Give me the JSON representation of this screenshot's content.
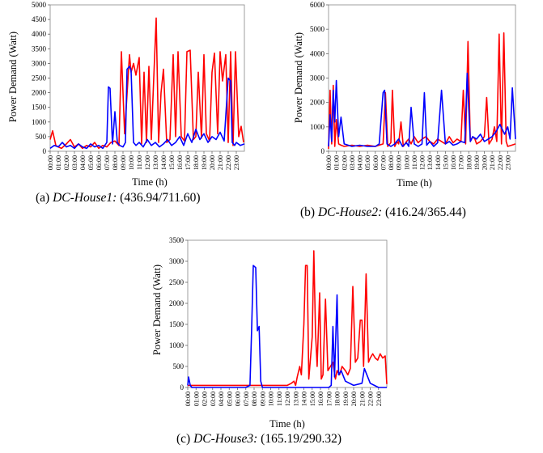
{
  "chart_data": [
    {
      "type": "line",
      "caption": {
        "label": "(a)",
        "name": "DC-House1:",
        "values": "(436.94/711.60)"
      },
      "xlabel": "Time (h)",
      "ylabel": "Power Demand (Watt)",
      "ylim": [
        0,
        5000
      ],
      "yticks": [
        0,
        500,
        1000,
        1500,
        2000,
        2500,
        3000,
        3500,
        4000,
        4500,
        5000
      ],
      "xticks": [
        "00:00",
        "01:00",
        "02:00",
        "03:00",
        "04:00",
        "05:00",
        "06:00",
        "07:00",
        "08:00",
        "09:00",
        "10:00",
        "11:00",
        "12:00",
        "13:00",
        "14:00",
        "15:00",
        "16:00",
        "17:00",
        "18:00",
        "19:00",
        "20:00",
        "21:00",
        "22:00",
        "23:00"
      ],
      "grid": false,
      "series": [
        {
          "color": "#ff0000",
          "x": [
            0,
            0.3,
            0.7,
            1,
            1.4,
            2,
            2.5,
            3,
            3.5,
            4,
            4.5,
            5,
            5.5,
            6,
            6.5,
            7,
            7.5,
            8,
            8.5,
            8.8,
            9.2,
            9.8,
            10,
            10.3,
            10.6,
            11,
            11.3,
            11.6,
            11.9,
            12.2,
            12.5,
            12.8,
            13.1,
            13.4,
            13.7,
            14,
            14.4,
            14.8,
            15.2,
            15.5,
            15.8,
            16.2,
            16.6,
            16.9,
            17.3,
            17.7,
            18,
            18.3,
            18.7,
            19,
            19.3,
            19.7,
            20,
            20.3,
            20.7,
            21,
            21.3,
            21.7,
            22,
            22.3,
            22.6,
            22.9,
            23.3,
            23.6,
            23.9
          ],
          "y": [
            400,
            700,
            200,
            150,
            100,
            250,
            400,
            150,
            250,
            100,
            200,
            150,
            300,
            100,
            200,
            150,
            300,
            350,
            200,
            3400,
            600,
            3300,
            2700,
            3000,
            2600,
            3200,
            250,
            2700,
            300,
            2900,
            400,
            2500,
            4550,
            300,
            2000,
            2800,
            300,
            400,
            3300,
            500,
            3400,
            500,
            350,
            3400,
            3450,
            400,
            500,
            2700,
            450,
            3300,
            600,
            350,
            2700,
            3350,
            600,
            3400,
            2400,
            3300,
            300,
            3400,
            200,
            3400,
            500,
            850,
            300
          ]
        },
        {
          "color": "#0000ff",
          "x": [
            0,
            0.5,
            1,
            1.5,
            2,
            2.5,
            3,
            3.5,
            4,
            4.5,
            5,
            5.5,
            6,
            6.5,
            7,
            7.2,
            7.4,
            7.7,
            8,
            8.3,
            8.6,
            9,
            9.3,
            9.5,
            9.8,
            10,
            10.3,
            10.6,
            11,
            11.5,
            12,
            12.5,
            13,
            13.5,
            14,
            14.5,
            15,
            15.5,
            16,
            16.5,
            17,
            17.5,
            18,
            18.5,
            19,
            19.5,
            20,
            20.5,
            21,
            21.5,
            22,
            22.3,
            22.5,
            22.8,
            23,
            23.5,
            24
          ],
          "y": [
            100,
            200,
            150,
            300,
            150,
            200,
            100,
            250,
            150,
            100,
            250,
            150,
            200,
            100,
            300,
            2200,
            2150,
            250,
            1350,
            300,
            200,
            150,
            300,
            2800,
            2900,
            2750,
            300,
            200,
            300,
            150,
            400,
            200,
            300,
            150,
            250,
            400,
            200,
            300,
            500,
            200,
            600,
            300,
            750,
            400,
            600,
            300,
            500,
            400,
            650,
            350,
            2500,
            2400,
            300,
            200,
            300,
            200,
            250
          ]
        }
      ]
    },
    {
      "type": "line",
      "caption": {
        "label": "(b)",
        "name": "DC-House2:",
        "values": "(416.24/365.44)"
      },
      "xlabel": "Time (h)",
      "ylabel": "Power Demand (Watt)",
      "ylim": [
        0,
        6000
      ],
      "yticks": [
        0,
        1000,
        2000,
        3000,
        4000,
        5000,
        6000
      ],
      "xticks": [
        "00:00",
        "01:00",
        "02:00",
        "03:00",
        "04:00",
        "05:00",
        "06:00",
        "07:00",
        "08:00",
        "09:00",
        "10:00",
        "11:00",
        "12:00",
        "13:00",
        "14:00",
        "15:00",
        "16:00",
        "17:00",
        "18:00",
        "19:00",
        "20:00",
        "21:00",
        "22:00",
        "23:00"
      ],
      "grid": false,
      "series": [
        {
          "color": "#ff0000",
          "x": [
            0,
            0.2,
            0.4,
            0.6,
            0.8,
            1,
            1.3,
            1.6,
            2,
            3,
            4,
            5,
            6,
            7,
            7.3,
            7.6,
            8,
            8.2,
            8.5,
            8.8,
            9,
            9.3,
            9.6,
            10,
            10.3,
            10.6,
            11,
            11.5,
            12,
            12.5,
            13,
            13.5,
            14,
            14.5,
            15,
            15.5,
            16,
            16.5,
            17,
            17.3,
            17.6,
            17.9,
            18.2,
            18.5,
            18.8,
            19,
            19.5,
            20,
            20.3,
            20.6,
            21,
            21.3,
            21.6,
            21.9,
            22.2,
            22.5,
            22.8,
            23,
            23.5,
            24
          ],
          "y": [
            100,
            2500,
            300,
            2700,
            200,
            1300,
            300,
            250,
            200,
            250,
            200,
            250,
            200,
            300,
            2400,
            200,
            350,
            2500,
            200,
            400,
            300,
            1200,
            200,
            400,
            500,
            300,
            600,
            350,
            500,
            600,
            400,
            300,
            500,
            400,
            300,
            600,
            350,
            500,
            400,
            2500,
            300,
            4500,
            400,
            600,
            500,
            300,
            400,
            600,
            2200,
            300,
            500,
            1000,
            400,
            4800,
            300,
            4850,
            400,
            200,
            250,
            300
          ]
        },
        {
          "color": "#0000ff",
          "x": [
            0,
            0.2,
            0.4,
            0.6,
            0.8,
            1,
            1.3,
            1.6,
            2,
            3,
            4,
            5,
            6,
            6.5,
            7,
            7.2,
            7.5,
            8,
            8.5,
            9,
            9.5,
            10,
            10.3,
            10.6,
            11,
            11.5,
            12,
            12.3,
            12.6,
            13,
            13.5,
            14,
            14.5,
            15,
            15.5,
            16,
            16.5,
            17,
            17.5,
            17.8,
            18.2,
            18.5,
            19,
            19.5,
            20,
            20.5,
            21,
            21.5,
            22,
            22.3,
            22.6,
            23,
            23.3,
            23.6,
            24
          ],
          "y": [
            200,
            1500,
            400,
            2500,
            1200,
            2900,
            600,
            1400,
            300,
            200,
            250,
            200,
            200,
            300,
            2400,
            2500,
            300,
            200,
            300,
            500,
            200,
            350,
            200,
            1800,
            300,
            200,
            300,
            2400,
            250,
            400,
            200,
            350,
            2500,
            300,
            400,
            250,
            300,
            400,
            350,
            3200,
            400,
            600,
            500,
            700,
            400,
            500,
            600,
            800,
            1100,
            900,
            700,
            1000,
            500,
            2600,
            500
          ]
        }
      ]
    },
    {
      "type": "line",
      "caption": {
        "label": "(c)",
        "name": "DC-House3:",
        "values": "(165.19/290.32)"
      },
      "xlabel": "Time (h)",
      "ylabel": "Power Demand (Watt)",
      "ylim": [
        0,
        3500
      ],
      "yticks": [
        0,
        500,
        1000,
        1500,
        2000,
        2500,
        3000,
        3500
      ],
      "xticks": [
        "00:00",
        "01:00",
        "02:00",
        "03:00",
        "04:00",
        "05:00",
        "06:00",
        "07:00",
        "08:00",
        "09:00",
        "10:00",
        "11:00",
        "12:00",
        "13:00",
        "14:00",
        "15:00",
        "16:00",
        "17:00",
        "18:00",
        "19:00",
        "20:00",
        "21:00",
        "22:00",
        "23:00"
      ],
      "grid": false,
      "series": [
        {
          "color": "#ff0000",
          "x": [
            0,
            0.5,
            1,
            2,
            3,
            4,
            5,
            6,
            7,
            8,
            9,
            10,
            11,
            12,
            12.5,
            12.8,
            13,
            13.2,
            13.5,
            13.7,
            14,
            14.2,
            14.4,
            14.6,
            15,
            15.2,
            15.4,
            15.6,
            15.9,
            16.1,
            16.3,
            16.6,
            16.9,
            17.2,
            17.5,
            17.8,
            18,
            18.3,
            18.6,
            19,
            19.3,
            19.6,
            19.9,
            20.2,
            20.5,
            20.8,
            21,
            21.2,
            21.5,
            21.8,
            22,
            22.3,
            22.6,
            22.9,
            23.2,
            23.5,
            23.8,
            24
          ],
          "y": [
            50,
            50,
            50,
            50,
            50,
            50,
            50,
            50,
            50,
            50,
            50,
            50,
            50,
            50,
            100,
            150,
            50,
            250,
            500,
            300,
            1500,
            2900,
            2900,
            200,
            1200,
            3250,
            1300,
            500,
            2250,
            200,
            300,
            2100,
            400,
            500,
            600,
            200,
            400,
            300,
            500,
            400,
            300,
            450,
            2400,
            600,
            700,
            1600,
            1600,
            500,
            2700,
            600,
            700,
            800,
            700,
            650,
            800,
            700,
            750,
            80
          ]
        },
        {
          "color": "#0000ff",
          "x": [
            0,
            0.1,
            0.3,
            0.5,
            1,
            2,
            3,
            4,
            5,
            6,
            7,
            7.5,
            7.7,
            7.9,
            8.2,
            8.4,
            8.6,
            8.8,
            9,
            10,
            11,
            12,
            13,
            14,
            15,
            16,
            17,
            17.3,
            17.5,
            17.7,
            18,
            18.2,
            18.5,
            19,
            20,
            21,
            21.3,
            21.6,
            22,
            22.5,
            23,
            24
          ],
          "y": [
            50,
            250,
            50,
            0,
            0,
            0,
            0,
            0,
            0,
            0,
            0,
            50,
            1350,
            2900,
            2850,
            1350,
            1450,
            150,
            0,
            0,
            0,
            0,
            0,
            0,
            0,
            0,
            0,
            50,
            1450,
            250,
            2200,
            300,
            400,
            150,
            50,
            100,
            450,
            300,
            100,
            50,
            0,
            0
          ]
        }
      ]
    }
  ]
}
